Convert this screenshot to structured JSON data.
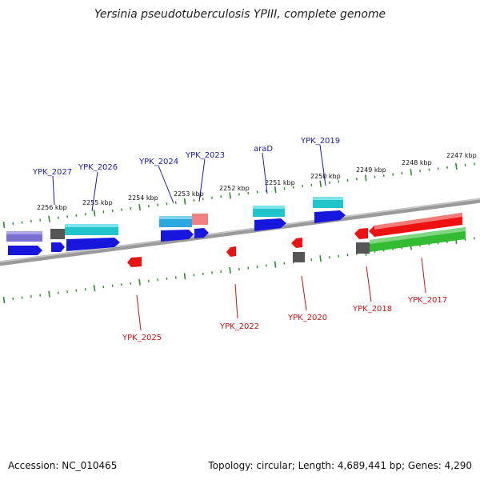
{
  "title": "Yersinia pseudotuberculosis YPIII, complete genome",
  "footer": {
    "accession": "Accession: NC_010465",
    "summary": "Topology: circular; Length: 4,689,441 bp; Genes: 4,290"
  },
  "colors": {
    "backbone": "#8a8a8a",
    "tick": "#2e8b2e",
    "cds_blue": "#1616dd",
    "gene_cyan": "#22c4cc",
    "gene_purple": "#7a70d0",
    "gene_red": "#ee1111",
    "gene_green": "#33bb33",
    "gene_gray": "#555555",
    "gene_pink": "#f08080",
    "gene_lightblue": "#2aa8e0",
    "label_blue": "#1a1aaa",
    "label_red": "#cc1111"
  },
  "kbp_labels": [
    "2256 kbp",
    "2255 kbp",
    "2254 kbp",
    "2253 kbp",
    "2252 kbp",
    "2251 kbp",
    "2250 kbp",
    "2249 kbp",
    "2248 kbp",
    "2247 kbp"
  ],
  "gene_labels_top": [
    "YPK_2027",
    "YPK_2026",
    "YPK_2024",
    "YPK_2023",
    "araD",
    "YPK_2019"
  ],
  "gene_labels_bottom": [
    "YPK_2025",
    "YPK_2022",
    "YPK_2020",
    "YPK_2018",
    "YPK_2017"
  ]
}
